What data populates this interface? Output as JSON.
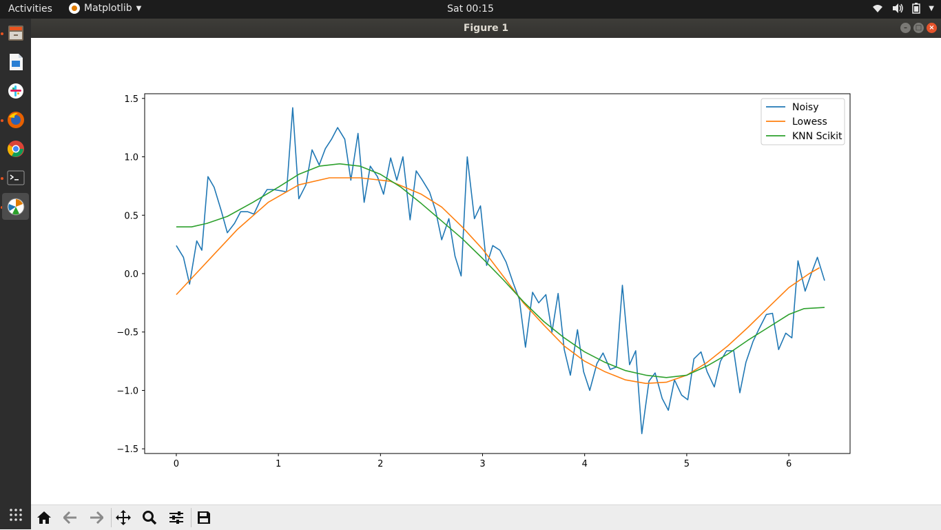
{
  "topbar": {
    "activities": "Activities",
    "app_name": "Matplotlib",
    "clock": "Sat 00:15",
    "tray_icons": [
      "wifi-icon",
      "volume-icon",
      "battery-icon",
      "power-menu-icon"
    ]
  },
  "window": {
    "title": "Figure 1"
  },
  "dock": {
    "items": [
      {
        "name": "files",
        "icon": "file-cabinet-icon",
        "running": true
      },
      {
        "name": "libreoffice-writer",
        "icon": "document-icon",
        "running": false
      },
      {
        "name": "slack",
        "icon": "slack-icon",
        "running": false
      },
      {
        "name": "firefox",
        "icon": "firefox-icon",
        "running": true
      },
      {
        "name": "chrome",
        "icon": "chrome-icon",
        "running": false
      },
      {
        "name": "terminal",
        "icon": "terminal-icon",
        "running": true
      },
      {
        "name": "matplotlib",
        "icon": "matplotlib-icon",
        "running": true,
        "active": true
      }
    ],
    "apps_grid_icon": "apps-grid-icon"
  },
  "toolbar": {
    "tools": [
      "home-icon",
      "back-arrow-icon",
      "forward-arrow-icon",
      "pan-icon",
      "zoom-icon",
      "configure-subplots-icon",
      "save-icon"
    ]
  },
  "chart_data": {
    "type": "line",
    "title": "",
    "xlabel": "",
    "ylabel": "",
    "xlim": [
      -0.31,
      6.6
    ],
    "ylim": [
      -1.54,
      1.54
    ],
    "xticks": [
      0,
      1,
      2,
      3,
      4,
      5,
      6
    ],
    "xtick_labels": [
      "0",
      "1",
      "2",
      "3",
      "4",
      "5",
      "6"
    ],
    "yticks": [
      -1.5,
      -1.0,
      -0.5,
      0.0,
      0.5,
      1.0,
      1.5
    ],
    "ytick_labels": [
      "−1.5",
      "−1.0",
      "−0.5",
      "0.0",
      "0.5",
      "1.0",
      "1.5"
    ],
    "grid": false,
    "legend_position": "top-right",
    "series": [
      {
        "name": "Noisy",
        "color": "#1f77b4",
        "points": [
          [
            0,
            0.24
          ],
          [
            0.07,
            0.14
          ],
          [
            0.13,
            -0.09
          ],
          [
            0.2,
            0.28
          ],
          [
            0.25,
            0.2
          ],
          [
            0.31,
            0.83
          ],
          [
            0.37,
            0.74
          ],
          [
            0.44,
            0.54
          ],
          [
            0.5,
            0.35
          ],
          [
            0.57,
            0.43
          ],
          [
            0.63,
            0.53
          ],
          [
            0.7,
            0.53
          ],
          [
            0.76,
            0.51
          ],
          [
            0.83,
            0.64
          ],
          [
            0.89,
            0.72
          ],
          [
            0.95,
            0.72
          ],
          [
            1.02,
            0.71
          ],
          [
            1.08,
            0.7
          ],
          [
            1.14,
            1.42
          ],
          [
            1.2,
            0.64
          ],
          [
            1.27,
            0.76
          ],
          [
            1.33,
            1.06
          ],
          [
            1.4,
            0.93
          ],
          [
            1.46,
            1.07
          ],
          [
            1.52,
            1.15
          ],
          [
            1.58,
            1.25
          ],
          [
            1.65,
            1.15
          ],
          [
            1.71,
            0.8
          ],
          [
            1.78,
            1.2
          ],
          [
            1.84,
            0.61
          ],
          [
            1.9,
            0.92
          ],
          [
            1.97,
            0.83
          ],
          [
            2.03,
            0.68
          ],
          [
            2.1,
            0.99
          ],
          [
            2.16,
            0.8
          ],
          [
            2.22,
            1.0
          ],
          [
            2.29,
            0.46
          ],
          [
            2.35,
            0.88
          ],
          [
            2.41,
            0.8
          ],
          [
            2.48,
            0.7
          ],
          [
            2.54,
            0.54
          ],
          [
            2.6,
            0.29
          ],
          [
            2.67,
            0.47
          ],
          [
            2.73,
            0.15
          ],
          [
            2.79,
            -0.02
          ],
          [
            2.85,
            1.0
          ],
          [
            2.92,
            0.47
          ],
          [
            2.98,
            0.58
          ],
          [
            3.04,
            0.07
          ],
          [
            3.1,
            0.24
          ],
          [
            3.17,
            0.2
          ],
          [
            3.23,
            0.1
          ],
          [
            3.3,
            -0.08
          ],
          [
            3.36,
            -0.22
          ],
          [
            3.42,
            -0.63
          ],
          [
            3.49,
            -0.16
          ],
          [
            3.55,
            -0.25
          ],
          [
            3.62,
            -0.18
          ],
          [
            3.68,
            -0.5
          ],
          [
            3.74,
            -0.17
          ],
          [
            3.8,
            -0.65
          ],
          [
            3.86,
            -0.87
          ],
          [
            3.93,
            -0.48
          ],
          [
            3.99,
            -0.84
          ],
          [
            4.05,
            -1.0
          ],
          [
            4.12,
            -0.77
          ],
          [
            4.18,
            -0.68
          ],
          [
            4.25,
            -0.82
          ],
          [
            4.31,
            -0.8
          ],
          [
            4.37,
            -0.1
          ],
          [
            4.44,
            -0.78
          ],
          [
            4.5,
            -0.66
          ],
          [
            4.56,
            -1.37
          ],
          [
            4.63,
            -0.92
          ],
          [
            4.69,
            -0.85
          ],
          [
            4.76,
            -1.07
          ],
          [
            4.82,
            -1.17
          ],
          [
            4.88,
            -0.91
          ],
          [
            4.95,
            -1.04
          ],
          [
            5.01,
            -1.08
          ],
          [
            5.07,
            -0.73
          ],
          [
            5.14,
            -0.67
          ],
          [
            5.2,
            -0.84
          ],
          [
            5.27,
            -0.97
          ],
          [
            5.33,
            -0.75
          ],
          [
            5.39,
            -0.66
          ],
          [
            5.46,
            -0.66
          ],
          [
            5.52,
            -1.02
          ],
          [
            5.58,
            -0.76
          ],
          [
            5.65,
            -0.58
          ],
          [
            5.71,
            -0.47
          ],
          [
            5.78,
            -0.35
          ],
          [
            5.84,
            -0.34
          ],
          [
            5.9,
            -0.65
          ],
          [
            5.97,
            -0.51
          ],
          [
            6.03,
            -0.55
          ],
          [
            6.09,
            0.11
          ],
          [
            6.16,
            -0.15
          ],
          [
            6.22,
            0.0
          ],
          [
            6.28,
            0.14
          ],
          [
            6.35,
            -0.06
          ]
        ]
      },
      {
        "name": "Lowess",
        "color": "#ff7f0e",
        "points": [
          [
            0,
            -0.18
          ],
          [
            0.3,
            0.1
          ],
          [
            0.6,
            0.38
          ],
          [
            0.9,
            0.61
          ],
          [
            1.2,
            0.76
          ],
          [
            1.5,
            0.82
          ],
          [
            1.8,
            0.82
          ],
          [
            2.1,
            0.79
          ],
          [
            2.4,
            0.68
          ],
          [
            2.6,
            0.57
          ],
          [
            2.8,
            0.4
          ],
          [
            3.0,
            0.21
          ],
          [
            3.2,
            -0.02
          ],
          [
            3.4,
            -0.25
          ],
          [
            3.6,
            -0.44
          ],
          [
            3.8,
            -0.62
          ],
          [
            4.0,
            -0.75
          ],
          [
            4.2,
            -0.84
          ],
          [
            4.4,
            -0.91
          ],
          [
            4.6,
            -0.94
          ],
          [
            4.8,
            -0.93
          ],
          [
            5.0,
            -0.87
          ],
          [
            5.2,
            -0.76
          ],
          [
            5.4,
            -0.62
          ],
          [
            5.6,
            -0.46
          ],
          [
            5.8,
            -0.29
          ],
          [
            6.0,
            -0.12
          ],
          [
            6.2,
            0.0
          ],
          [
            6.3,
            0.05
          ]
        ]
      },
      {
        "name": "KNN Scikit",
        "color": "#2ca02c",
        "points": [
          [
            0,
            0.4
          ],
          [
            0.15,
            0.4
          ],
          [
            0.3,
            0.43
          ],
          [
            0.5,
            0.49
          ],
          [
            0.75,
            0.61
          ],
          [
            1.0,
            0.74
          ],
          [
            1.2,
            0.85
          ],
          [
            1.4,
            0.92
          ],
          [
            1.6,
            0.94
          ],
          [
            1.8,
            0.92
          ],
          [
            2.0,
            0.85
          ],
          [
            2.2,
            0.74
          ],
          [
            2.4,
            0.6
          ],
          [
            2.6,
            0.45
          ],
          [
            2.8,
            0.3
          ],
          [
            3.0,
            0.13
          ],
          [
            3.2,
            -0.05
          ],
          [
            3.4,
            -0.24
          ],
          [
            3.6,
            -0.41
          ],
          [
            3.8,
            -0.55
          ],
          [
            4.0,
            -0.67
          ],
          [
            4.2,
            -0.76
          ],
          [
            4.4,
            -0.83
          ],
          [
            4.6,
            -0.87
          ],
          [
            4.8,
            -0.89
          ],
          [
            5.0,
            -0.87
          ],
          [
            5.2,
            -0.79
          ],
          [
            5.4,
            -0.69
          ],
          [
            5.6,
            -0.57
          ],
          [
            5.8,
            -0.46
          ],
          [
            6.0,
            -0.35
          ],
          [
            6.15,
            -0.3
          ],
          [
            6.35,
            -0.29
          ]
        ]
      }
    ]
  }
}
